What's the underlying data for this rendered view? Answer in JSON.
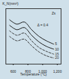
{
  "chart_data": {
    "type": "line",
    "x_label": "Temperature (°C)",
    "y_label": "K_N(mm²)",
    "x": [
      550,
      650,
      750,
      850,
      950,
      1050,
      1150
    ],
    "series": [
      {
        "name": "5",
        "color": "#1a1a1a",
        "line_style": "solid",
        "values": [
          80,
          72,
          76,
          62,
          50,
          42,
          36
        ]
      },
      {
        "name": "10",
        "color": "#1a1a1a",
        "line_style": "solid",
        "values": [
          70,
          62,
          66,
          52,
          40,
          32,
          27
        ]
      },
      {
        "name": "15",
        "color": "#333333",
        "line_style": "dashed",
        "values": [
          60,
          52,
          56,
          42,
          30,
          23,
          18
        ]
      },
      {
        "name": "20",
        "color": "#333333",
        "line_style": "dashed",
        "values": [
          50,
          42,
          45,
          33,
          22,
          15,
          11
        ]
      }
    ],
    "annotations": [
      {
        "text": "Zs",
        "x": 1150,
        "y": 92
      },
      {
        "text": "Δ = 0.4",
        "x": 1000,
        "y": 70
      }
    ],
    "xlim": [
      500,
      1250
    ],
    "xticks": [
      600,
      800,
      {
        "value": 1000,
        "label": "1,000"
      },
      {
        "value": 1200,
        "label": "1,200"
      }
    ],
    "ylim": [
      0,
      100
    ],
    "yticks": [],
    "tick_labels": "x",
    "grid": false
  }
}
